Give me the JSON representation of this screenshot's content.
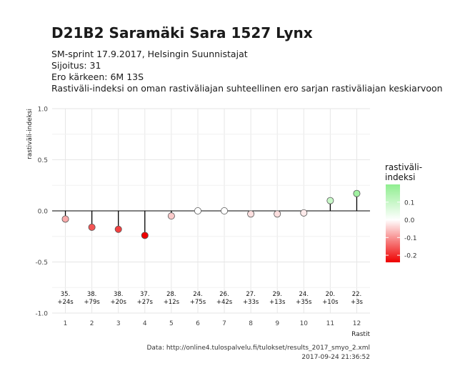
{
  "header": {
    "title": "D21B2 Saramäki Sara 1527 Lynx",
    "subtitle_lines": [
      "SM-sprint 17.9.2017, Helsingin Suunnistajat",
      "Sijoitus: 31",
      "Ero kärkeen: 6M 13S",
      "Rastiväli-indeksi on oman rastiväliajan suhteellinen ero sarjan rastiväliajan keskiarvoon"
    ]
  },
  "caption": {
    "line1": "Data: http://online4.tulospalvelu.fi/tulokset/results_2017_smyo_2.xml",
    "line2": "2017-09-24 21:36:52"
  },
  "chart_data": {
    "type": "scatter",
    "xlabel": "Rastit",
    "ylabel": "rastiväli-indeksi",
    "x": [
      1,
      2,
      3,
      4,
      5,
      6,
      7,
      8,
      9,
      10,
      11,
      12
    ],
    "y": [
      -0.08,
      -0.16,
      -0.18,
      -0.24,
      -0.05,
      0.0,
      0.0,
      -0.03,
      -0.03,
      -0.02,
      0.1,
      0.17
    ],
    "point_labels": [
      [
        "35.",
        "+24s"
      ],
      [
        "38.",
        "+79s"
      ],
      [
        "38.",
        "+20s"
      ],
      [
        "37.",
        "+27s"
      ],
      [
        "28.",
        "+12s"
      ],
      [
        "24.",
        "+75s"
      ],
      [
        "26.",
        "+42s"
      ],
      [
        "27.",
        "+33s"
      ],
      [
        "29.",
        "+13s"
      ],
      [
        "24.",
        "+35s"
      ],
      [
        "20.",
        "+10s"
      ],
      [
        "22.",
        "+3s"
      ]
    ],
    "xticks": [
      "1",
      "2",
      "3",
      "4",
      "5",
      "6",
      "7",
      "8",
      "9",
      "10",
      "11",
      "12"
    ],
    "yticks": [
      "-1.0",
      "-0.5",
      "0.0",
      "0.5",
      "1.0"
    ],
    "ytick_values": [
      -1.0,
      -0.5,
      0.0,
      0.5,
      1.0
    ],
    "xlim": [
      0.5,
      12.5
    ],
    "ylim": [
      -1.0,
      1.0
    ],
    "grid": true,
    "legend": {
      "title_lines": [
        "rastiväli-",
        "indeksi"
      ],
      "placement": "right",
      "range": [
        -0.24,
        0.2
      ],
      "ticks": [
        {
          "value": 0.1,
          "label": "0.1"
        },
        {
          "value": 0.0,
          "label": "0.0"
        },
        {
          "value": -0.1,
          "label": "-0.1"
        },
        {
          "value": -0.2,
          "label": "-0.2"
        }
      ]
    },
    "colors": {
      "low": "#ee0000",
      "mid": "#ffffff",
      "high": "#90ee90",
      "stem": "#000000",
      "point_stroke": "#555555",
      "grid": "#e6e6e6",
      "zero_line": "#000000"
    }
  }
}
